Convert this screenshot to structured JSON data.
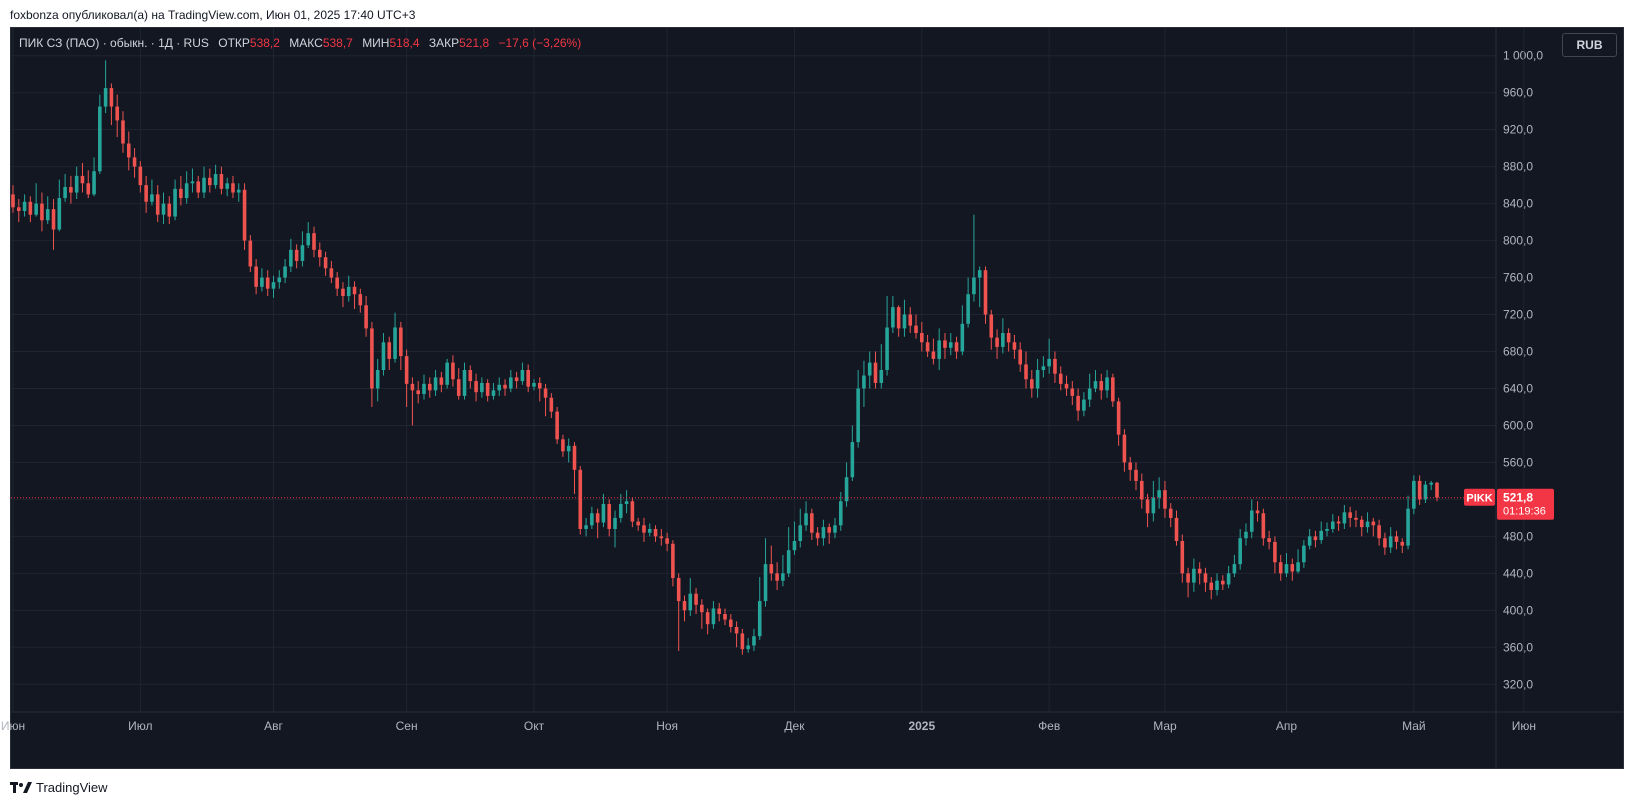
{
  "header": {
    "caption": "foxbonza опубликовал(а) на TradingView.com, Июн 01, 2025 17:40 UTC+3"
  },
  "legend": {
    "symbol": "ПИК СЗ (ПАО) · обыкн. · 1Д · RUS",
    "open_label": "ОТКР",
    "open_value": "538,2",
    "high_label": "МАКС",
    "high_value": "538,7",
    "low_label": "МИН",
    "low_value": "518,4",
    "close_label": "ЗАКР",
    "close_value": "521,8",
    "change": "−17,6 (−3,26%)"
  },
  "currency_button": "RUB",
  "price_tag": {
    "ticker": "PIKK",
    "price": "521,8",
    "countdown": "01:19:36"
  },
  "footer": {
    "brand": "TradingView"
  },
  "colors": {
    "up": "#26a69a",
    "down": "#ef5350",
    "background": "#131722",
    "grid": "#1f2430",
    "text": "#b2b5be"
  },
  "chart_data": {
    "type": "candlestick",
    "ylim": [
      290,
      1030
    ],
    "y_ticks": [
      1000,
      960,
      920,
      880,
      840,
      800,
      760,
      720,
      680,
      640,
      600,
      560,
      520,
      480,
      440,
      400,
      360,
      320
    ],
    "y_tick_labels": [
      "1 000,0",
      "960,0",
      "920,0",
      "880,0",
      "840,0",
      "800,0",
      "760,0",
      "720,0",
      "680,0",
      "640,0",
      "600,0",
      "560,0",
      "520,0",
      "480,0",
      "440,0",
      "400,0",
      "360,0",
      "320,0"
    ],
    "x_tick_labels": [
      {
        "label": "Июн",
        "day": 0
      },
      {
        "label": "Июл",
        "day": 22
      },
      {
        "label": "Авг",
        "day": 45
      },
      {
        "label": "Сен",
        "day": 68
      },
      {
        "label": "Окт",
        "day": 90
      },
      {
        "label": "Ноя",
        "day": 113
      },
      {
        "label": "Дек",
        "day": 135
      },
      {
        "label": "2025",
        "day": 157
      },
      {
        "label": "Фев",
        "day": 179
      },
      {
        "label": "Мар",
        "day": 199
      },
      {
        "label": "Апр",
        "day": 220
      },
      {
        "label": "Май",
        "day": 242
      },
      {
        "label": "Июн",
        "day": 261
      }
    ],
    "last_price": 521.8,
    "candles": [
      [
        850,
        836,
        860,
        830
      ],
      [
        836,
        832,
        845,
        820
      ],
      [
        832,
        842,
        850,
        826
      ],
      [
        842,
        828,
        848,
        820
      ],
      [
        828,
        840,
        862,
        826
      ],
      [
        840,
        822,
        852,
        810
      ],
      [
        822,
        834,
        848,
        818
      ],
      [
        834,
        812,
        845,
        790
      ],
      [
        812,
        846,
        866,
        810
      ],
      [
        846,
        858,
        872,
        842
      ],
      [
        858,
        852,
        870,
        840
      ],
      [
        852,
        870,
        880,
        845
      ],
      [
        870,
        862,
        884,
        852
      ],
      [
        862,
        850,
        876,
        846
      ],
      [
        850,
        875,
        890,
        848
      ],
      [
        875,
        945,
        958,
        872
      ],
      [
        945,
        965,
        995,
        938
      ],
      [
        965,
        945,
        970,
        925
      ],
      [
        945,
        930,
        958,
        912
      ],
      [
        930,
        905,
        940,
        895
      ],
      [
        905,
        890,
        918,
        876
      ],
      [
        890,
        880,
        900,
        868
      ],
      [
        880,
        860,
        886,
        852
      ],
      [
        860,
        842,
        870,
        830
      ],
      [
        842,
        850,
        866,
        838
      ],
      [
        850,
        828,
        860,
        820
      ],
      [
        828,
        840,
        852,
        818
      ],
      [
        840,
        826,
        848,
        818
      ],
      [
        826,
        856,
        866,
        822
      ],
      [
        856,
        846,
        870,
        838
      ],
      [
        846,
        862,
        875,
        840
      ],
      [
        862,
        864,
        878,
        852
      ],
      [
        864,
        852,
        870,
        846
      ],
      [
        852,
        868,
        880,
        846
      ],
      [
        868,
        860,
        878,
        852
      ],
      [
        860,
        872,
        882,
        856
      ],
      [
        872,
        856,
        880,
        850
      ],
      [
        856,
        862,
        868,
        848
      ],
      [
        862,
        852,
        870,
        846
      ],
      [
        852,
        855,
        862,
        842
      ],
      [
        855,
        800,
        862,
        790
      ],
      [
        800,
        772,
        806,
        766
      ],
      [
        772,
        750,
        780,
        742
      ],
      [
        750,
        760,
        770,
        745
      ],
      [
        760,
        748,
        768,
        740
      ],
      [
        748,
        755,
        762,
        738
      ],
      [
        755,
        760,
        768,
        748
      ],
      [
        760,
        772,
        780,
        754
      ],
      [
        772,
        790,
        802,
        766
      ],
      [
        790,
        778,
        796,
        770
      ],
      [
        778,
        795,
        810,
        772
      ],
      [
        795,
        808,
        820,
        792
      ],
      [
        808,
        790,
        815,
        782
      ],
      [
        790,
        782,
        798,
        772
      ],
      [
        782,
        770,
        788,
        762
      ],
      [
        770,
        760,
        778,
        754
      ],
      [
        760,
        748,
        766,
        740
      ],
      [
        748,
        740,
        755,
        728
      ],
      [
        740,
        750,
        762,
        734
      ],
      [
        750,
        742,
        756,
        726
      ],
      [
        742,
        730,
        748,
        722
      ],
      [
        730,
        705,
        740,
        696
      ],
      [
        705,
        640,
        712,
        620
      ],
      [
        640,
        660,
        672,
        626
      ],
      [
        660,
        690,
        700,
        654
      ],
      [
        690,
        672,
        696,
        660
      ],
      [
        672,
        706,
        722,
        668
      ],
      [
        706,
        675,
        712,
        660
      ],
      [
        675,
        645,
        682,
        620
      ],
      [
        645,
        638,
        652,
        600
      ],
      [
        638,
        634,
        648,
        624
      ],
      [
        634,
        645,
        655,
        628
      ],
      [
        645,
        638,
        652,
        630
      ],
      [
        638,
        652,
        660,
        632
      ],
      [
        652,
        644,
        658,
        636
      ],
      [
        644,
        668,
        672,
        640
      ],
      [
        668,
        650,
        676,
        642
      ],
      [
        650,
        632,
        662,
        628
      ],
      [
        632,
        660,
        668,
        628
      ],
      [
        660,
        648,
        665,
        640
      ],
      [
        648,
        636,
        656,
        626
      ],
      [
        636,
        646,
        652,
        630
      ],
      [
        646,
        632,
        650,
        626
      ],
      [
        632,
        638,
        646,
        628
      ],
      [
        638,
        644,
        652,
        632
      ],
      [
        644,
        640,
        650,
        632
      ],
      [
        640,
        652,
        660,
        636
      ],
      [
        652,
        648,
        658,
        640
      ],
      [
        648,
        660,
        668,
        644
      ],
      [
        660,
        642,
        666,
        636
      ],
      [
        642,
        646,
        650,
        638
      ],
      [
        646,
        640,
        652,
        626
      ],
      [
        640,
        630,
        645,
        610
      ],
      [
        630,
        615,
        635,
        608
      ],
      [
        615,
        585,
        620,
        580
      ],
      [
        585,
        572,
        590,
        566
      ],
      [
        572,
        578,
        586,
        560
      ],
      [
        578,
        552,
        582,
        526
      ],
      [
        552,
        488,
        556,
        482
      ],
      [
        488,
        492,
        500,
        480
      ],
      [
        492,
        505,
        512,
        488
      ],
      [
        505,
        495,
        510,
        478
      ],
      [
        495,
        515,
        526,
        490
      ],
      [
        515,
        488,
        520,
        480
      ],
      [
        488,
        500,
        508,
        468
      ],
      [
        500,
        515,
        526,
        495
      ],
      [
        515,
        518,
        530,
        505
      ],
      [
        518,
        496,
        522,
        490
      ],
      [
        496,
        492,
        500,
        486
      ],
      [
        492,
        484,
        500,
        474
      ],
      [
        484,
        488,
        494,
        480
      ],
      [
        488,
        480,
        492,
        474
      ],
      [
        480,
        478,
        488,
        470
      ],
      [
        478,
        472,
        484,
        464
      ],
      [
        472,
        435,
        476,
        426
      ],
      [
        435,
        410,
        440,
        356
      ],
      [
        410,
        400,
        416,
        388
      ],
      [
        400,
        418,
        435,
        394
      ],
      [
        418,
        406,
        424,
        396
      ],
      [
        406,
        398,
        412,
        380
      ],
      [
        398,
        385,
        402,
        374
      ],
      [
        385,
        402,
        410,
        380
      ],
      [
        402,
        396,
        408,
        388
      ],
      [
        396,
        390,
        402,
        384
      ],
      [
        390,
        382,
        396,
        376
      ],
      [
        382,
        375,
        388,
        360
      ],
      [
        375,
        358,
        380,
        352
      ],
      [
        358,
        362,
        370,
        354
      ],
      [
        362,
        372,
        380,
        356
      ],
      [
        372,
        410,
        436,
        368
      ],
      [
        410,
        450,
        478,
        404
      ],
      [
        450,
        440,
        470,
        432
      ],
      [
        440,
        432,
        452,
        422
      ],
      [
        432,
        440,
        460,
        426
      ],
      [
        440,
        465,
        490,
        436
      ],
      [
        465,
        475,
        496,
        460
      ],
      [
        475,
        492,
        510,
        468
      ],
      [
        492,
        505,
        518,
        486
      ],
      [
        505,
        484,
        510,
        476
      ],
      [
        484,
        478,
        490,
        470
      ],
      [
        478,
        490,
        498,
        470
      ],
      [
        490,
        484,
        494,
        472
      ],
      [
        484,
        492,
        500,
        478
      ],
      [
        492,
        518,
        528,
        486
      ],
      [
        518,
        544,
        560,
        512
      ],
      [
        544,
        582,
        600,
        540
      ],
      [
        582,
        640,
        660,
        576
      ],
      [
        640,
        654,
        670,
        620
      ],
      [
        654,
        668,
        680,
        640
      ],
      [
        668,
        646,
        680,
        640
      ],
      [
        646,
        660,
        688,
        640
      ],
      [
        660,
        706,
        740,
        654
      ],
      [
        706,
        728,
        740,
        700
      ],
      [
        728,
        705,
        730,
        696
      ],
      [
        705,
        720,
        736,
        696
      ],
      [
        720,
        708,
        728,
        700
      ],
      [
        708,
        700,
        720,
        694
      ],
      [
        700,
        690,
        712,
        680
      ],
      [
        690,
        680,
        698,
        674
      ],
      [
        680,
        672,
        694,
        666
      ],
      [
        672,
        692,
        705,
        660
      ],
      [
        692,
        684,
        700,
        672
      ],
      [
        684,
        690,
        700,
        676
      ],
      [
        690,
        680,
        696,
        672
      ],
      [
        680,
        710,
        730,
        676
      ],
      [
        710,
        742,
        760,
        706
      ],
      [
        742,
        760,
        828,
        734
      ],
      [
        760,
        768,
        772,
        728
      ],
      [
        768,
        720,
        772,
        710
      ],
      [
        720,
        695,
        725,
        682
      ],
      [
        695,
        685,
        704,
        672
      ],
      [
        685,
        700,
        716,
        678
      ],
      [
        700,
        690,
        705,
        680
      ],
      [
        690,
        682,
        698,
        672
      ],
      [
        682,
        666,
        690,
        658
      ],
      [
        666,
        650,
        680,
        640
      ],
      [
        650,
        640,
        660,
        630
      ],
      [
        640,
        660,
        672,
        630
      ],
      [
        660,
        664,
        675,
        652
      ],
      [
        664,
        672,
        694,
        656
      ],
      [
        672,
        656,
        680,
        646
      ],
      [
        656,
        645,
        664,
        638
      ],
      [
        645,
        640,
        654,
        632
      ],
      [
        640,
        632,
        648,
        622
      ],
      [
        632,
        616,
        640,
        605
      ],
      [
        616,
        628,
        636,
        610
      ],
      [
        628,
        640,
        656,
        620
      ],
      [
        640,
        648,
        660,
        636
      ],
      [
        648,
        638,
        656,
        628
      ],
      [
        638,
        652,
        660,
        630
      ],
      [
        652,
        626,
        656,
        620
      ],
      [
        626,
        590,
        630,
        578
      ],
      [
        590,
        560,
        596,
        550
      ],
      [
        560,
        552,
        566,
        540
      ],
      [
        552,
        540,
        560,
        530
      ],
      [
        540,
        520,
        548,
        510
      ],
      [
        520,
        505,
        526,
        490
      ],
      [
        505,
        522,
        540,
        496
      ],
      [
        522,
        530,
        544,
        510
      ],
      [
        530,
        510,
        540,
        500
      ],
      [
        510,
        500,
        516,
        490
      ],
      [
        500,
        475,
        508,
        470
      ],
      [
        475,
        440,
        482,
        430
      ],
      [
        440,
        430,
        446,
        414
      ],
      [
        430,
        445,
        456,
        420
      ],
      [
        445,
        440,
        452,
        428
      ],
      [
        440,
        430,
        446,
        420
      ],
      [
        430,
        422,
        436,
        412
      ],
      [
        422,
        432,
        440,
        416
      ],
      [
        432,
        428,
        438,
        422
      ],
      [
        428,
        440,
        448,
        424
      ],
      [
        440,
        450,
        460,
        436
      ],
      [
        450,
        478,
        488,
        444
      ],
      [
        478,
        485,
        494,
        470
      ],
      [
        485,
        508,
        520,
        478
      ],
      [
        508,
        505,
        518,
        496
      ],
      [
        505,
        478,
        510,
        470
      ],
      [
        478,
        474,
        486,
        466
      ],
      [
        474,
        452,
        480,
        440
      ],
      [
        452,
        440,
        460,
        432
      ],
      [
        440,
        450,
        462,
        436
      ],
      [
        450,
        442,
        456,
        432
      ],
      [
        442,
        452,
        466,
        440
      ],
      [
        452,
        470,
        476,
        446
      ],
      [
        470,
        480,
        488,
        466
      ],
      [
        480,
        476,
        486,
        468
      ],
      [
        476,
        486,
        496,
        472
      ],
      [
        486,
        488,
        495,
        480
      ],
      [
        488,
        496,
        504,
        484
      ],
      [
        496,
        494,
        502,
        486
      ],
      [
        494,
        506,
        514,
        488
      ],
      [
        506,
        500,
        512,
        490
      ],
      [
        500,
        498,
        508,
        490
      ],
      [
        498,
        490,
        502,
        480
      ],
      [
        490,
        496,
        506,
        484
      ],
      [
        496,
        492,
        500,
        480
      ],
      [
        492,
        478,
        498,
        470
      ],
      [
        478,
        468,
        484,
        460
      ],
      [
        468,
        480,
        490,
        462
      ],
      [
        480,
        474,
        486,
        466
      ],
      [
        474,
        470,
        478,
        462
      ],
      [
        470,
        510,
        524,
        466
      ],
      [
        510,
        540,
        546,
        504
      ],
      [
        540,
        520,
        546,
        514
      ],
      [
        520,
        536,
        540,
        516
      ],
      [
        536,
        538,
        540,
        530
      ],
      [
        538,
        522,
        539,
        518
      ]
    ]
  }
}
